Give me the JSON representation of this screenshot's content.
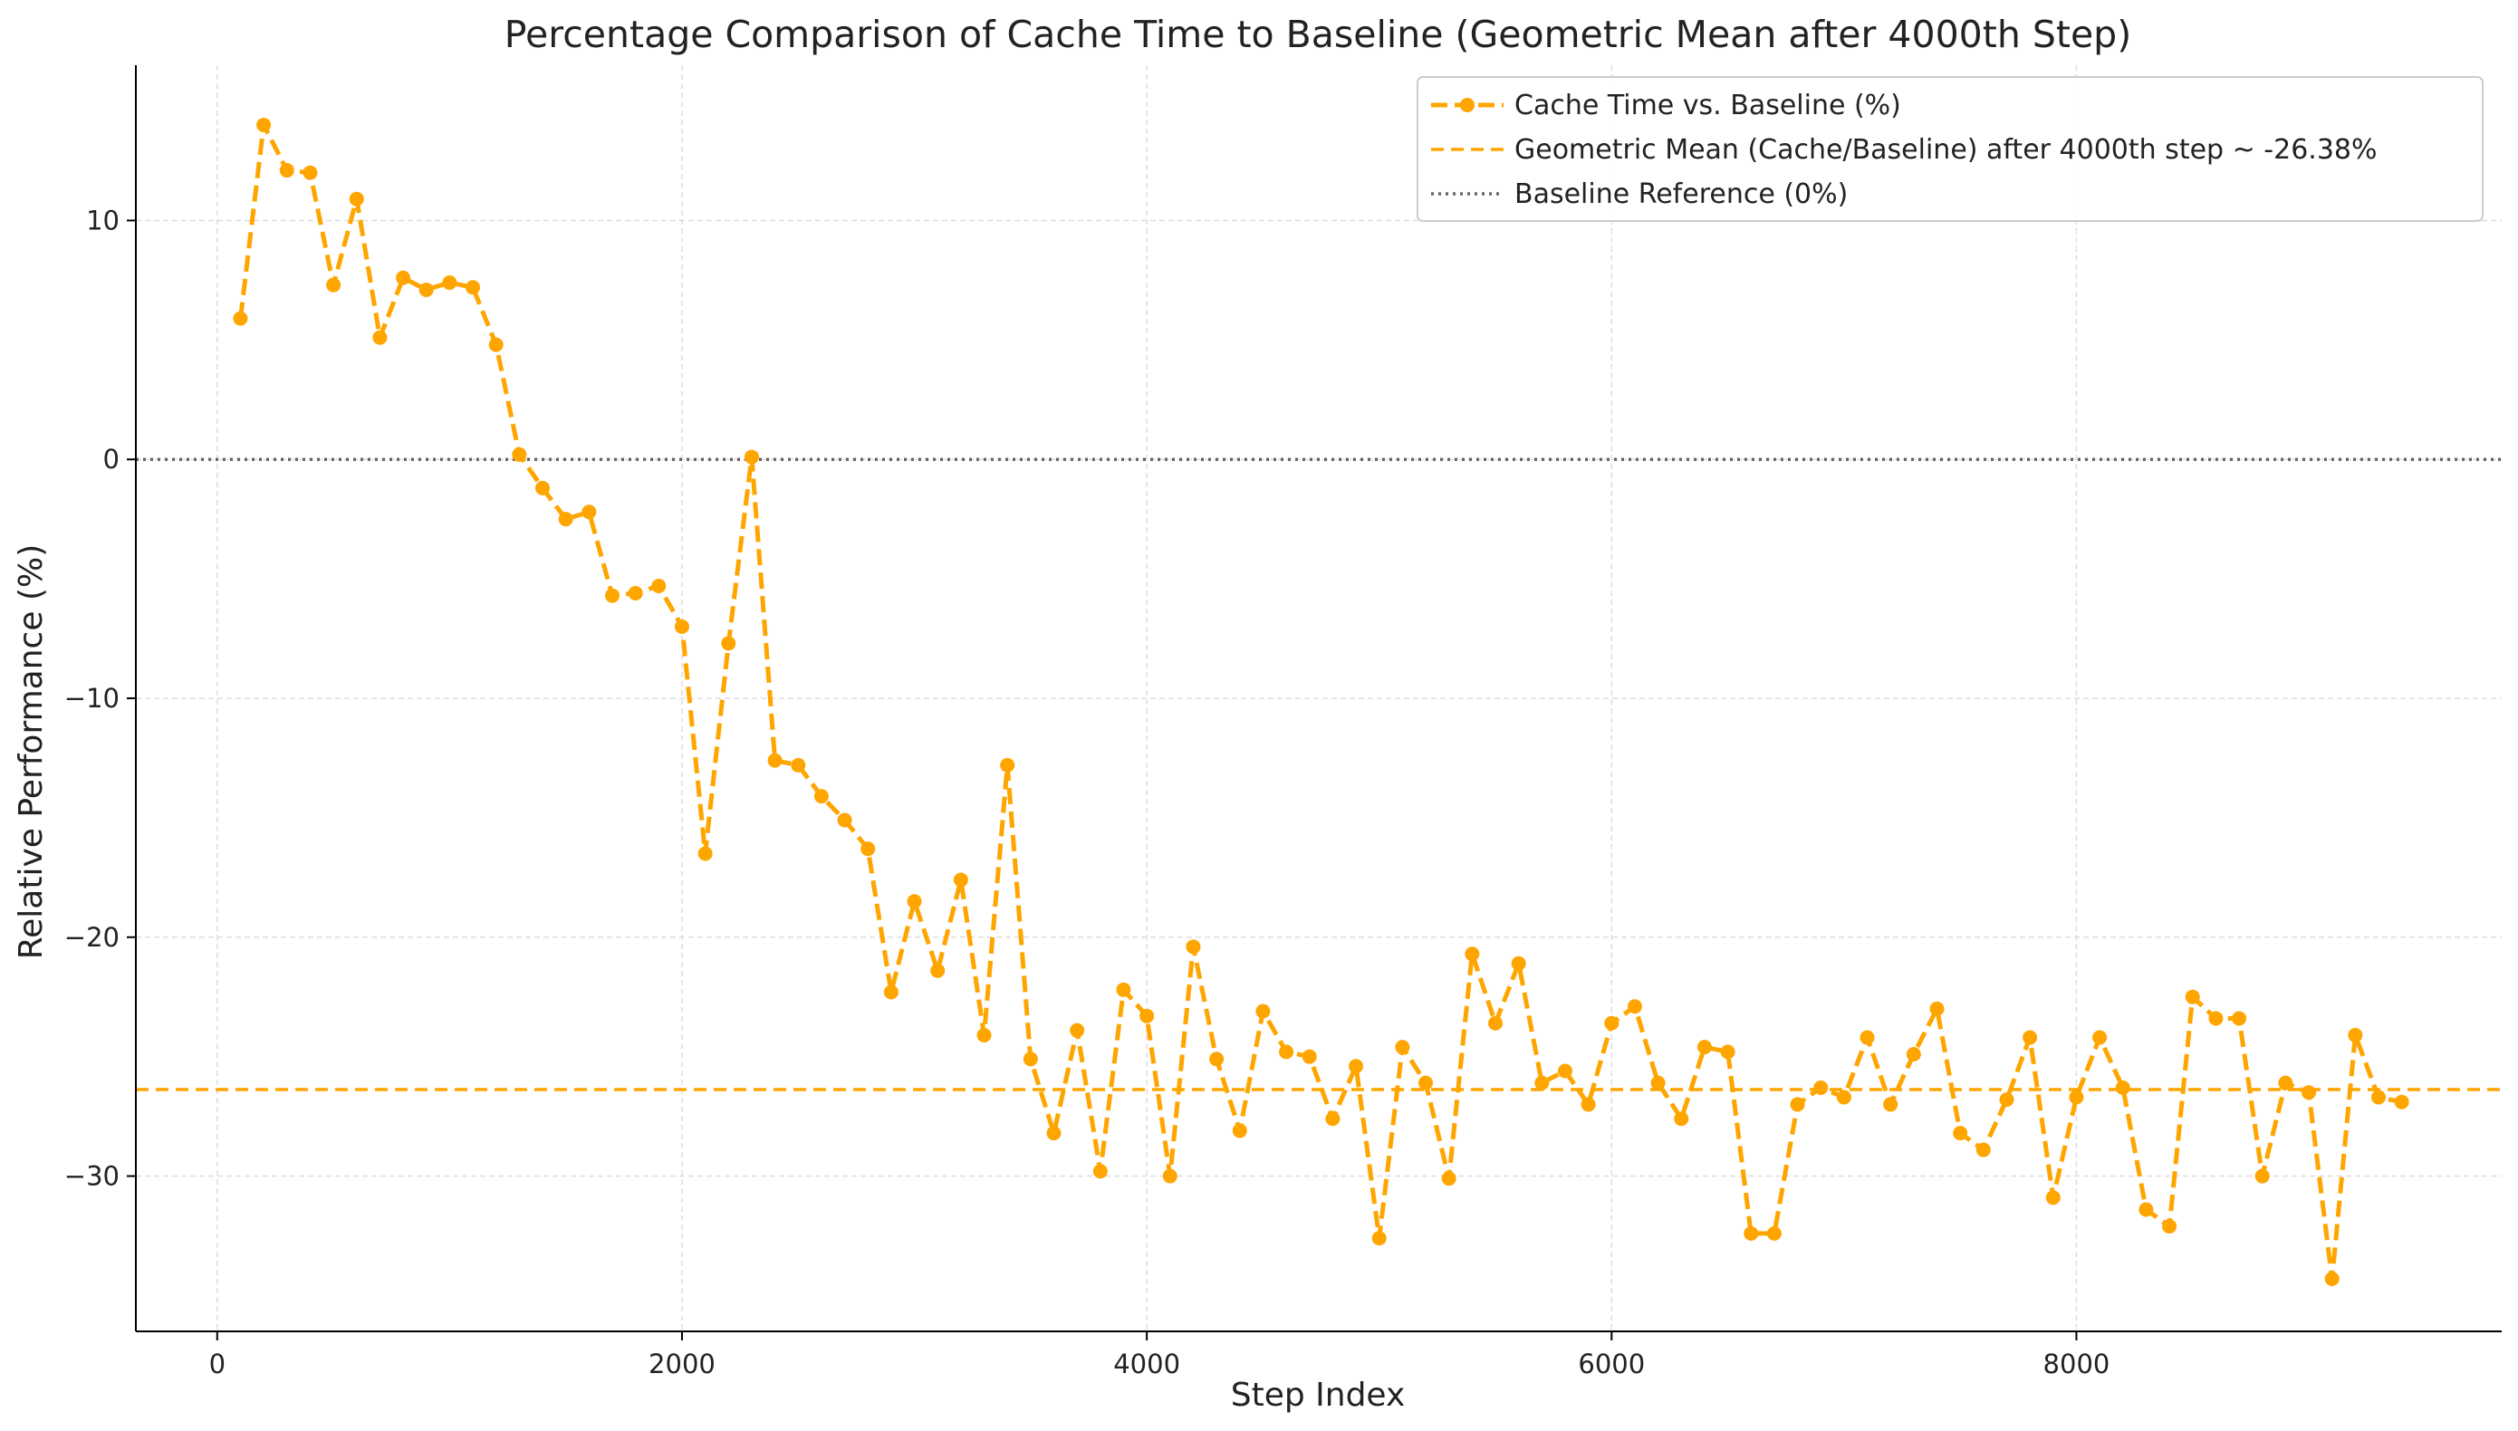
{
  "chart_data": {
    "type": "line",
    "title": "Percentage Comparison of Cache Time to Baseline (Geometric Mean after 4000th Step)",
    "xlabel": "Step Index",
    "ylabel": "Relative Performance (%)",
    "xlim": [
      -350,
      9830
    ],
    "ylim": [
      -36.5,
      16.5
    ],
    "x_ticks": [
      0,
      2000,
      4000,
      6000,
      8000
    ],
    "x_tick_labels": [
      "0",
      "2000",
      "4000",
      "6000",
      "8000"
    ],
    "y_ticks": [
      10,
      0,
      -10,
      -20,
      -30
    ],
    "y_tick_labels": [
      "10",
      "0",
      "−10",
      "−20",
      "−30"
    ],
    "grid": true,
    "legend_position": "top-right",
    "colors": {
      "series": "#FFA500",
      "mean": "#FFA500",
      "baseline": "#666666"
    },
    "series": [
      {
        "name": "Cache Time vs. Baseline (%)",
        "style": "dashed-with-markers",
        "x": [
          100,
          200,
          300,
          400,
          500,
          600,
          700,
          800,
          900,
          1000,
          1100,
          1200,
          1300,
          1400,
          1500,
          1600,
          1700,
          1800,
          1900,
          2000,
          2100,
          2200,
          2300,
          2400,
          2500,
          2600,
          2700,
          2800,
          2900,
          3000,
          3100,
          3200,
          3300,
          3400,
          3500,
          3600,
          3700,
          3800,
          3900,
          4000,
          4100,
          4200,
          4300,
          4400,
          4500,
          4600,
          4700,
          4800,
          4900,
          5000,
          5100,
          5200,
          5300,
          5400,
          5500,
          5600,
          5700,
          5800,
          5900,
          6000,
          6100,
          6200,
          6300,
          6400,
          6500,
          6600,
          6700,
          6800,
          6900,
          7000,
          7100,
          7200,
          7300,
          7400,
          7500,
          7600,
          7700,
          7800,
          7900,
          8000,
          8100,
          8200,
          8300,
          8400,
          8500,
          8600,
          8700,
          8800,
          8900,
          9000,
          9100,
          9200,
          9300,
          9400
        ],
        "y": [
          5.9,
          14.0,
          12.1,
          12.0,
          7.3,
          10.9,
          5.1,
          7.6,
          7.1,
          7.4,
          7.2,
          4.8,
          0.2,
          -1.2,
          -2.5,
          -2.2,
          -5.7,
          -5.6,
          -5.3,
          -7.0,
          -16.5,
          -7.7,
          0.1,
          -12.6,
          -12.8,
          -14.1,
          -15.1,
          -16.3,
          -22.3,
          -18.5,
          -21.4,
          -17.6,
          -24.1,
          -12.8,
          -25.1,
          -28.2,
          -23.9,
          -29.8,
          -22.2,
          -23.3,
          -30.0,
          -20.4,
          -25.1,
          -28.1,
          -23.1,
          -24.8,
          -25.0,
          -27.6,
          -25.4,
          -32.6,
          -24.6,
          -26.1,
          -30.1,
          -20.7,
          -23.6,
          -21.1,
          -26.1,
          -25.6,
          -27.0,
          -23.6,
          -22.9,
          -26.1,
          -27.6,
          -24.6,
          -24.8,
          -32.4,
          -32.4,
          -27.0,
          -26.3,
          -26.7,
          -24.2,
          -27.0,
          -24.9,
          -23.0,
          -28.2,
          -28.9,
          -26.8,
          -24.2,
          -30.9,
          -26.7,
          -24.2,
          -26.3,
          -31.4,
          -32.1,
          -22.5,
          -23.4,
          -23.4,
          -30.0,
          -26.1,
          -26.5,
          -34.3,
          -24.1,
          -26.7,
          -26.9
        ]
      },
      {
        "name": "Geometric Mean (Cache/Baseline) after 4000th step ~ -26.38%",
        "style": "dashed",
        "y": -26.38
      },
      {
        "name": "Baseline Reference (0%)",
        "style": "dotted",
        "y": 0
      }
    ]
  }
}
